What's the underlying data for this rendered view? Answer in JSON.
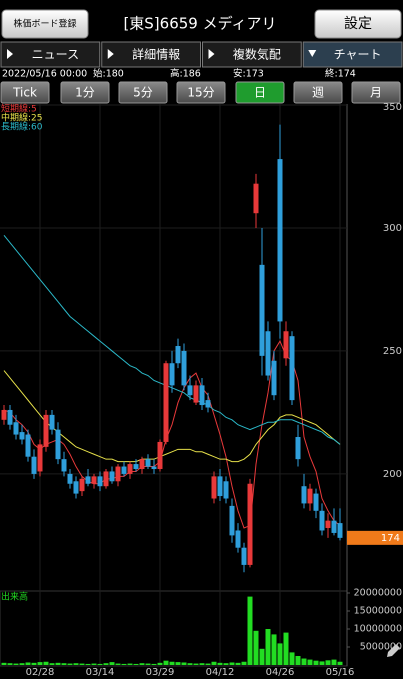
{
  "header": {
    "board_button": "株価ボード登録",
    "title": "[東S]6659 メディアリ",
    "settings": "設定"
  },
  "tabs": [
    "ニュース",
    "詳細情報",
    "複数気配",
    "チャート"
  ],
  "active_tab": 3,
  "info": {
    "datetime": "2022/05/16 00:00",
    "open": "始:180",
    "high": "高:186",
    "low": "安:173",
    "close": "終:174"
  },
  "periods": [
    "Tick",
    "1分",
    "5分",
    "15分",
    "日",
    "週",
    "月"
  ],
  "active_period": 4,
  "chart_data": [
    {
      "type": "candlestick",
      "categories": [
        null,
        null,
        null,
        null,
        null,
        null,
        "02/28",
        null,
        null,
        null,
        null,
        null,
        null,
        null,
        null,
        null,
        "03/14",
        null,
        null,
        null,
        null,
        null,
        null,
        null,
        null,
        null,
        "03/29",
        null,
        null,
        null,
        null,
        null,
        null,
        null,
        null,
        null,
        "04/12",
        null,
        null,
        null,
        null,
        null,
        null,
        null,
        null,
        null,
        "04/26",
        null,
        null,
        null,
        null,
        null,
        null,
        null,
        null,
        null,
        "05/16"
      ],
      "open": [
        222,
        226,
        221,
        217,
        216,
        207,
        201,
        211,
        224,
        218,
        206,
        200,
        197,
        193,
        199,
        196,
        199,
        195,
        201,
        197,
        203,
        200,
        204,
        202,
        206,
        203,
        202,
        213,
        245,
        252,
        250,
        236,
        229,
        236,
        230,
        190,
        199,
        197,
        187,
        177,
        170,
        163,
        306,
        285,
        258,
        246,
        328,
        247,
        256,
        215,
        195,
        188,
        192,
        185,
        178,
        181,
        180
      ],
      "high": [
        228,
        228,
        224,
        220,
        218,
        210,
        214,
        226,
        226,
        221,
        209,
        202,
        199,
        199,
        202,
        200,
        201,
        202,
        203,
        204,
        205,
        205,
        206,
        207,
        208,
        206,
        214,
        246,
        250,
        255,
        253,
        240,
        238,
        239,
        233,
        201,
        202,
        199,
        190,
        180,
        172,
        198,
        322,
        300,
        262,
        250,
        342,
        262,
        258,
        220,
        200,
        196,
        194,
        188,
        184,
        186,
        186
      ],
      "low": [
        220,
        218,
        214,
        212,
        205,
        198,
        199,
        209,
        216,
        204,
        199,
        194,
        190,
        191,
        195,
        194,
        193,
        194,
        196,
        195,
        199,
        198,
        201,
        200,
        202,
        200,
        201,
        212,
        233,
        243,
        234,
        230,
        228,
        226,
        225,
        188,
        189,
        188,
        172,
        168,
        160,
        162,
        300,
        240,
        238,
        230,
        255,
        244,
        228,
        203,
        186,
        185,
        182,
        175,
        174,
        175,
        173
      ],
      "close": [
        226,
        220,
        216,
        214,
        207,
        200,
        212,
        224,
        218,
        206,
        201,
        196,
        192,
        198,
        196,
        199,
        195,
        201,
        197,
        203,
        200,
        204,
        202,
        206,
        203,
        202,
        213,
        245,
        236,
        245,
        236,
        232,
        236,
        228,
        227,
        199,
        191,
        190,
        175,
        170,
        163,
        196,
        318,
        248,
        240,
        232,
        262,
        258,
        230,
        206,
        188,
        194,
        185,
        177,
        181,
        176,
        174
      ],
      "up_color": "#e8393a",
      "down_color": "#2f9fdb",
      "lines": [
        {
          "name": "短期線:5",
          "color": "#e8393a",
          "values": [
            226,
            225,
            222,
            220,
            217,
            212,
            210,
            212,
            213,
            214,
            212,
            208,
            203,
            199,
            197,
            196,
            196,
            198,
            198,
            199,
            199,
            201,
            201,
            203,
            203,
            203,
            205,
            214,
            220,
            229,
            235,
            239,
            241,
            235,
            232,
            224,
            216,
            207,
            195,
            185,
            178,
            179,
            204,
            220,
            233,
            250,
            254,
            248,
            246,
            238,
            215,
            207,
            201,
            190,
            185,
            181,
            179
          ]
        },
        {
          "name": "中期線:25",
          "color": "#e6e04a",
          "values": [
            242,
            239,
            236,
            233,
            230,
            227,
            224,
            221,
            219,
            217,
            215,
            213,
            211,
            210,
            209,
            208,
            207,
            206,
            206,
            205,
            205,
            205,
            205,
            206,
            206,
            206,
            207,
            208,
            209,
            210,
            210,
            210,
            209,
            209,
            208,
            207,
            206,
            206,
            205,
            205,
            206,
            208,
            212,
            215,
            218,
            220,
            223,
            224,
            224,
            223,
            222,
            221,
            220,
            218,
            216,
            214,
            212
          ]
        },
        {
          "name": "長期線:60",
          "color": "#2bb8c8",
          "values": [
            297,
            294,
            291,
            288,
            285,
            282,
            279,
            276,
            273,
            270,
            267,
            264,
            262,
            260,
            258,
            256,
            254,
            252,
            250,
            248,
            246,
            244,
            243,
            241,
            240,
            238,
            237,
            236,
            235,
            234,
            233,
            231,
            230,
            229,
            228,
            226,
            225,
            223,
            222,
            220,
            219,
            218,
            219,
            220,
            221,
            221,
            222,
            222,
            222,
            221,
            220,
            219,
            218,
            217,
            215,
            214,
            212
          ]
        }
      ],
      "ylim": [
        152.8,
        350.4
      ],
      "yticks": [
        200,
        250,
        300,
        350
      ],
      "last_price": 174,
      "last_price_color": "#f07a1a"
    },
    {
      "type": "bar",
      "title": "出来高",
      "color": "#22dd22",
      "values": [
        600000,
        500000,
        400000,
        500000,
        700000,
        600000,
        800000,
        900000,
        500000,
        600000,
        500000,
        400000,
        500000,
        400000,
        300000,
        400000,
        300000,
        500000,
        800000,
        400000,
        300000,
        400000,
        300000,
        500000,
        400000,
        300000,
        600000,
        1200000,
        900000,
        800000,
        700000,
        500000,
        400000,
        500000,
        400000,
        900000,
        600000,
        500000,
        700000,
        600000,
        900000,
        19000000,
        9500000,
        4500000,
        10000000,
        8500000,
        6000000,
        9000000,
        3500000,
        2500000,
        1800000,
        1500000,
        1200000,
        1000000,
        1300000,
        1500000,
        900000
      ],
      "ylim": [
        0,
        20000000
      ],
      "yticks": [
        5000000,
        10000000,
        15000000,
        20000000
      ]
    }
  ]
}
